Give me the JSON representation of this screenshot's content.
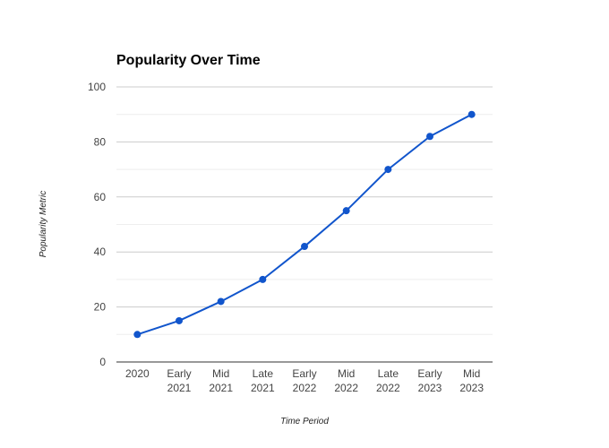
{
  "chart_data": {
    "type": "line",
    "title": "Popularity Over Time",
    "xlabel": "Time Period",
    "ylabel": "Popularity Metric",
    "categories": [
      [
        "2020"
      ],
      [
        "Early",
        "2021"
      ],
      [
        "Mid",
        "2021"
      ],
      [
        "Late",
        "2021"
      ],
      [
        "Early",
        "2022"
      ],
      [
        "Mid",
        "2022"
      ],
      [
        "Late",
        "2022"
      ],
      [
        "Early",
        "2023"
      ],
      [
        "Mid",
        "2023"
      ]
    ],
    "series": [
      {
        "values": [
          10,
          15,
          22,
          30,
          42,
          55,
          70,
          82,
          90
        ]
      }
    ],
    "ylim": [
      0,
      100
    ],
    "yticks": [
      0,
      20,
      40,
      60,
      80,
      100
    ],
    "minor_gridlines": true,
    "grid": true,
    "legend": "none",
    "colors": {
      "line": "#1155cc",
      "grid_major": "#cccccc",
      "grid_minor": "#eeeeee",
      "baseline": "#333333"
    }
  }
}
